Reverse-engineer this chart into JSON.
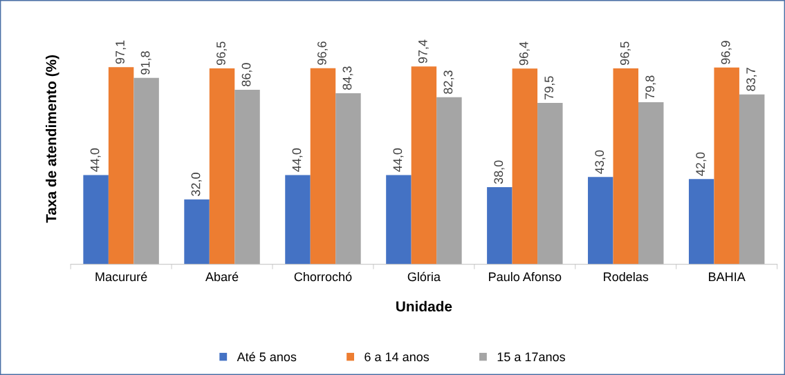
{
  "chart_data": {
    "type": "bar",
    "xlabel": "Unidade",
    "ylabel": "Taxa de atendimento (%)",
    "categories": [
      "Macururé",
      "Abaré",
      "Chorrochó",
      "Glória",
      "Paulo Afonso",
      "Rodelas",
      "BAHIA"
    ],
    "series": [
      {
        "name": "Até 5 anos",
        "color": "#4472c4",
        "values": [
          44.0,
          32.0,
          44.0,
          44.0,
          38.0,
          43.0,
          42.0
        ],
        "value_labels": [
          "44,0",
          "32,0",
          "44,0",
          "44,0",
          "38,0",
          "43,0",
          "42,0"
        ]
      },
      {
        "name": "6 a 14 anos",
        "color": "#ed7d31",
        "values": [
          97.1,
          96.5,
          96.6,
          97.4,
          96.4,
          96.5,
          96.9
        ],
        "value_labels": [
          "97,1",
          "96,5",
          "96,6",
          "97,4",
          "96,4",
          "96,5",
          "96,9"
        ]
      },
      {
        "name": "15 a 17anos",
        "color": "#a5a5a5",
        "values": [
          91.8,
          86.0,
          84.3,
          82.3,
          79.5,
          79.8,
          83.7
        ],
        "value_labels": [
          "91,8",
          "86,0",
          "84,3",
          "82,3",
          "79,5",
          "79,8",
          "83,7"
        ]
      }
    ],
    "legend": "bottom"
  }
}
